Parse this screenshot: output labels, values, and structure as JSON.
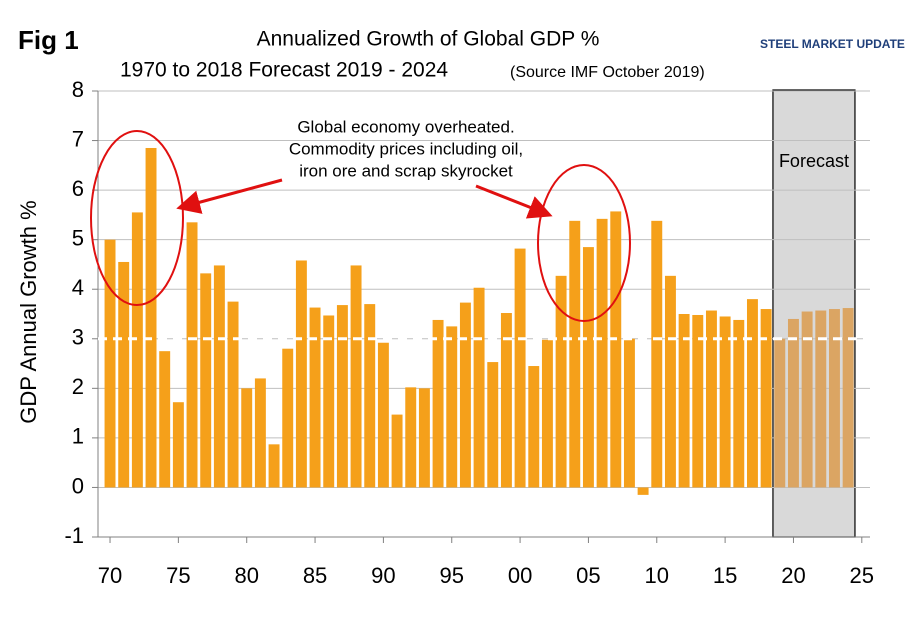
{
  "chart_data": {
    "type": "bar",
    "figure_label": "Fig 1",
    "title": "Annualized Growth of Global GDP %",
    "subtitle": "1970 to 2018 Forecast 2019 - 2024",
    "source": "(Source IMF October 2019)",
    "logo": "STEEL MARKET UPDATE",
    "y_label": "GDP Annual Growth %",
    "annotation": [
      "Global economy overheated.",
      "Commodity prices including oil,",
      "iron ore and scrap skyrocket"
    ],
    "forecast_label": "Forecast",
    "series": [
      {
        "color": "#f5a01a",
        "x": [
          1970,
          1971,
          1972,
          1973,
          1974,
          1975,
          1976,
          1977,
          1978,
          1979,
          1980,
          1981,
          1982,
          1983,
          1984,
          1985,
          1986,
          1987,
          1988,
          1989,
          1990,
          1991,
          1992,
          1993,
          1994,
          1995,
          1996,
          1997,
          1998,
          1999,
          2000,
          2001,
          2002,
          2003,
          2004,
          2005,
          2006,
          2007,
          2008,
          2009,
          2010,
          2011,
          2012,
          2013,
          2014,
          2015,
          2016,
          2017,
          2018
        ],
        "values": [
          5.0,
          4.55,
          5.55,
          6.85,
          2.75,
          1.72,
          5.35,
          4.32,
          4.48,
          3.75,
          2.0,
          2.2,
          0.87,
          2.8,
          4.58,
          3.63,
          3.47,
          3.68,
          4.48,
          3.7,
          2.92,
          1.47,
          2.02,
          2.0,
          3.38,
          3.25,
          3.73,
          4.03,
          2.53,
          3.52,
          4.82,
          2.45,
          2.98,
          4.27,
          5.38,
          4.85,
          5.42,
          5.57,
          3.0,
          -0.15,
          5.38,
          4.27,
          3.5,
          3.48,
          3.57,
          3.45,
          3.38,
          3.8,
          3.6
        ]
      },
      {
        "color": "#dba563",
        "x": [
          2019,
          2020,
          2021,
          2022,
          2023,
          2024
        ],
        "values": [
          3.0,
          3.4,
          3.55,
          3.57,
          3.6,
          3.62
        ]
      }
    ],
    "reference_line": {
      "value": 3,
      "color": "#ffffff"
    },
    "xlim": [
      1969.12,
      2025.6
    ],
    "xticks": [
      {
        "value": 1970,
        "label": "70"
      },
      {
        "value": 1975,
        "label": "75"
      },
      {
        "value": 1980,
        "label": "80"
      },
      {
        "value": 1985,
        "label": "85"
      },
      {
        "value": 1990,
        "label": "90"
      },
      {
        "value": 1995,
        "label": "95"
      },
      {
        "value": 2000,
        "label": "00"
      },
      {
        "value": 2005,
        "label": "05"
      },
      {
        "value": 2010,
        "label": "10"
      },
      {
        "value": 2015,
        "label": "15"
      },
      {
        "value": 2020,
        "label": "20"
      },
      {
        "value": 2025,
        "label": "25"
      }
    ],
    "ylim": [
      -1,
      8
    ],
    "yticks": [
      -1,
      0,
      1,
      2,
      3,
      4,
      5,
      6,
      7,
      8
    ],
    "grid": true
  }
}
